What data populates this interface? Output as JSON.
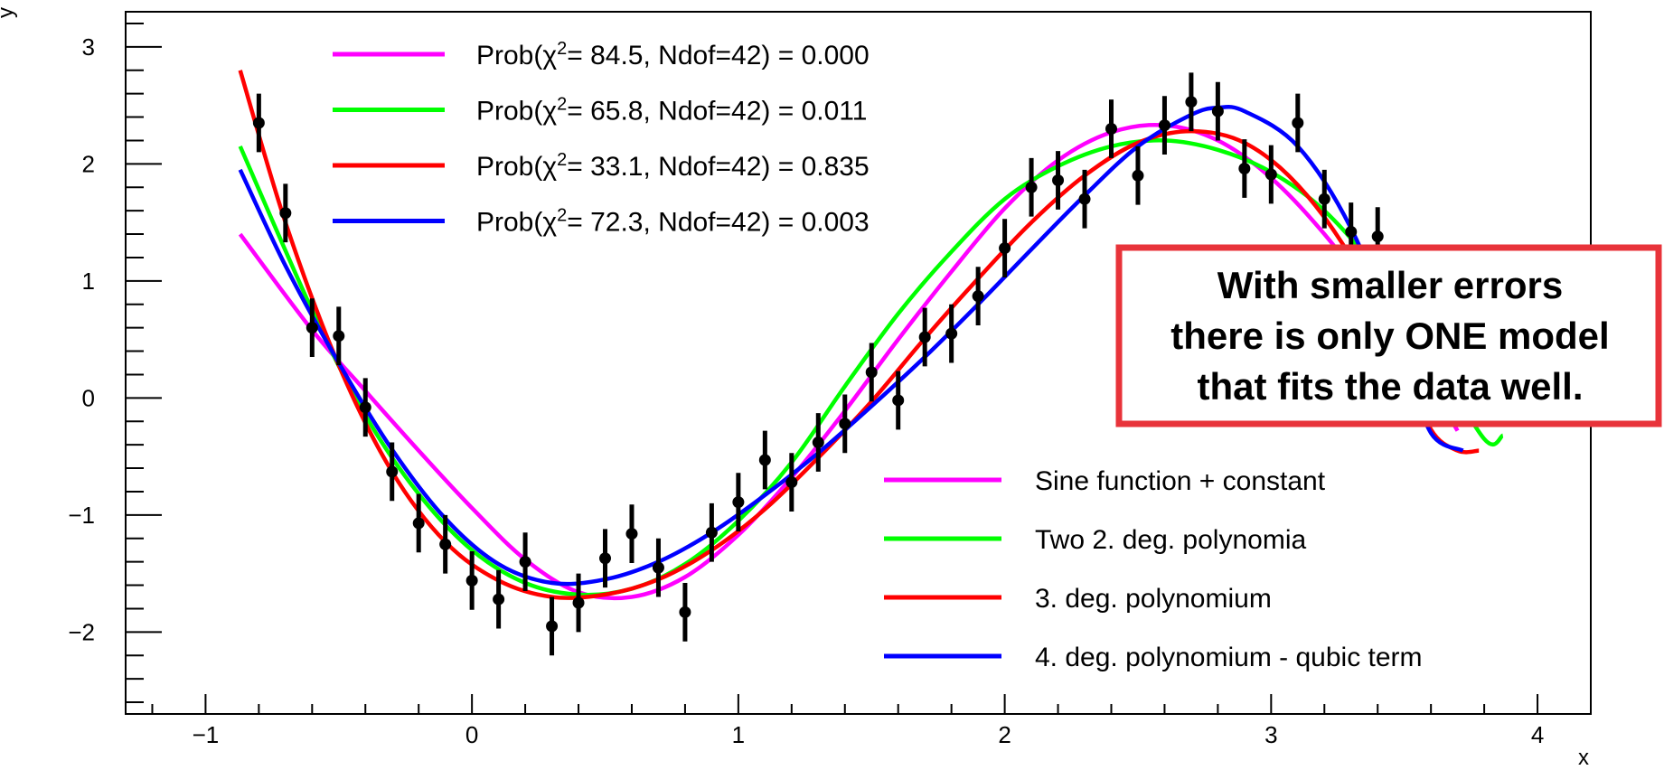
{
  "chart_data": {
    "type": "scatter",
    "xlabel": "x",
    "ylabel": "y",
    "xlim": [
      -1.3,
      4.2
    ],
    "ylim": [
      -2.7,
      3.3
    ],
    "x_ticks": [
      -1,
      0,
      1,
      2,
      3,
      4
    ],
    "y_ticks": [
      -2,
      -1,
      0,
      1,
      2,
      3
    ],
    "x_tick_labels": [
      "−1",
      "0",
      "1",
      "2",
      "3",
      "4"
    ],
    "y_tick_labels": [
      "−2",
      "−1",
      "0",
      "1",
      "2",
      "3"
    ],
    "grid": false,
    "data": {
      "x": [
        -0.8,
        -0.7,
        -0.6,
        -0.5,
        -0.4,
        -0.3,
        -0.2,
        -0.1,
        0.0,
        0.1,
        0.2,
        0.3,
        0.4,
        0.5,
        0.6,
        0.7,
        0.8,
        0.9,
        1.0,
        1.1,
        1.2,
        1.3,
        1.4,
        1.5,
        1.6,
        1.7,
        1.8,
        1.9,
        2.0,
        2.1,
        2.2,
        2.3,
        2.4,
        2.5,
        2.6,
        2.7,
        2.8,
        2.9,
        3.0,
        3.1,
        3.2,
        3.3,
        3.4
      ],
      "y": [
        2.35,
        1.58,
        0.6,
        0.53,
        -0.08,
        -0.63,
        -1.07,
        -1.25,
        -1.56,
        -1.72,
        -1.4,
        -1.95,
        -1.75,
        -1.37,
        -1.16,
        -1.45,
        -1.83,
        -1.15,
        -0.89,
        -0.53,
        -0.72,
        -0.38,
        -0.22,
        0.22,
        -0.02,
        0.52,
        0.55,
        0.87,
        1.28,
        1.8,
        1.86,
        1.7,
        2.3,
        1.9,
        2.33,
        2.53,
        2.45,
        1.96,
        1.91,
        2.35,
        1.7,
        1.42,
        1.38
      ],
      "yerr": 0.25
    },
    "series": [
      {
        "name": "Sine function + constant",
        "color": "#ff00ff",
        "x": [
          -0.87,
          -0.6,
          -0.4,
          -0.2,
          0.0,
          0.2,
          0.4,
          0.6,
          0.8,
          1.0,
          1.2,
          1.4,
          1.6,
          1.8,
          2.0,
          2.2,
          2.4,
          2.6,
          2.8,
          3.0,
          3.2,
          3.4,
          3.6,
          3.7
        ],
        "y": [
          1.4,
          0.58,
          0.06,
          -0.45,
          -0.94,
          -1.38,
          -1.66,
          -1.7,
          -1.53,
          -1.17,
          -0.68,
          -0.11,
          0.5,
          1.08,
          1.62,
          2.03,
          2.27,
          2.33,
          2.2,
          1.88,
          1.4,
          0.8,
          0.1,
          -0.28
        ]
      },
      {
        "name": "Two 2. deg. polynomia",
        "color": "#00ff00",
        "x": [
          -0.87,
          -0.6,
          -0.4,
          -0.2,
          0.0,
          0.2,
          0.4,
          0.6,
          0.8,
          1.0,
          1.2,
          1.4,
          1.6,
          1.8,
          2.0,
          2.2,
          2.4,
          2.6,
          2.8,
          3.0,
          3.2,
          3.4,
          3.6,
          3.8,
          3.87
        ],
        "y": [
          2.15,
          0.75,
          -0.15,
          -0.82,
          -1.3,
          -1.58,
          -1.68,
          -1.63,
          -1.42,
          -1.05,
          -0.55,
          0.1,
          0.72,
          1.25,
          1.7,
          1.98,
          2.15,
          2.2,
          2.12,
          1.93,
          1.6,
          1.08,
          0.4,
          -0.35,
          -0.32
        ]
      },
      {
        "name": "3. deg. polynomium",
        "color": "#ff0000",
        "x": [
          -0.87,
          -0.7,
          -0.5,
          -0.3,
          -0.1,
          0.1,
          0.3,
          0.5,
          0.7,
          0.9,
          1.1,
          1.3,
          1.5,
          1.7,
          1.9,
          2.1,
          2.3,
          2.5,
          2.7,
          2.9,
          3.1,
          3.3,
          3.5,
          3.6,
          3.7,
          3.78
        ],
        "y": [
          2.8,
          1.5,
          0.28,
          -0.63,
          -1.23,
          -1.56,
          -1.7,
          -1.68,
          -1.55,
          -1.3,
          -0.95,
          -0.51,
          -0.03,
          0.51,
          1.02,
          1.5,
          1.9,
          2.18,
          2.28,
          2.18,
          1.82,
          1.2,
          0.3,
          -0.27,
          -0.45,
          -0.45
        ]
      },
      {
        "name": "4. deg. polynomium - qubic term",
        "color": "#0000ff",
        "x": [
          -0.87,
          -0.7,
          -0.5,
          -0.3,
          -0.1,
          0.1,
          0.3,
          0.5,
          0.7,
          0.9,
          1.1,
          1.3,
          1.5,
          1.7,
          1.9,
          2.1,
          2.3,
          2.5,
          2.7,
          2.8,
          2.9,
          3.1,
          3.3,
          3.5,
          3.6,
          3.72
        ],
        "y": [
          1.95,
          1.13,
          0.3,
          -0.44,
          -1.03,
          -1.42,
          -1.58,
          -1.55,
          -1.4,
          -1.15,
          -0.83,
          -0.47,
          -0.07,
          0.35,
          0.8,
          1.27,
          1.73,
          2.15,
          2.42,
          2.48,
          2.45,
          2.15,
          1.45,
          0.35,
          -0.3,
          -0.45
        ]
      }
    ],
    "legend_position": "bottom-right"
  },
  "stats_legend": [
    {
      "color": "#ff00ff",
      "prefix": "Prob(χ",
      "sup": "2",
      "suffix": "= 84.5, Ndof=42) = 0.000"
    },
    {
      "color": "#00ff00",
      "prefix": "Prob(χ",
      "sup": "2",
      "suffix": "= 65.8, Ndof=42) = 0.011"
    },
    {
      "color": "#ff0000",
      "prefix": "Prob(χ",
      "sup": "2",
      "suffix": "= 33.1, Ndof=42) = 0.835"
    },
    {
      "color": "#0000ff",
      "prefix": "Prob(χ",
      "sup": "2",
      "suffix": "= 72.3, Ndof=42) = 0.003"
    }
  ],
  "annotation": {
    "lines": [
      "With smaller errors",
      "there is only ONE model",
      "that fits the data well."
    ],
    "border_color": "#e8333a"
  }
}
